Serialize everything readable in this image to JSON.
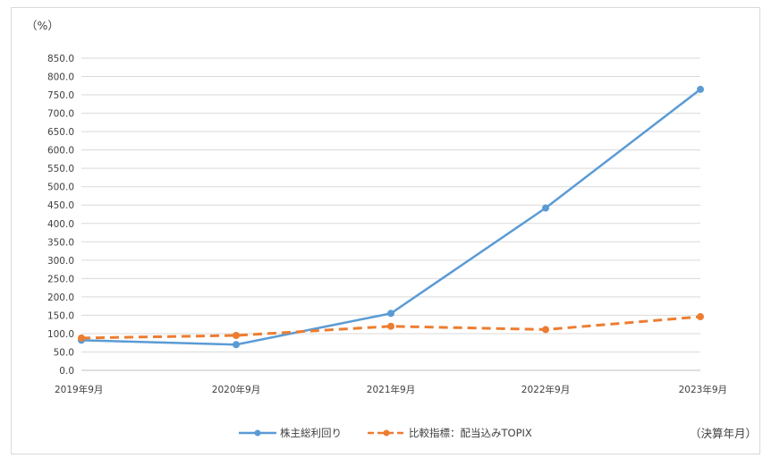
{
  "colors": {
    "series_primary": "#5B9BD5",
    "series_secondary": "#ED7D31",
    "grid": "#d9d9d9"
  },
  "chart_data": {
    "type": "line",
    "title": "",
    "y_unit_label": "（%）",
    "x_caption": "（決算年月）",
    "ylim": [
      0,
      850
    ],
    "ytick_step": 50,
    "yticks": [
      "0.0",
      "50.0",
      "100.0",
      "150.0",
      "200.0",
      "250.0",
      "300.0",
      "350.0",
      "400.0",
      "450.0",
      "500.0",
      "550.0",
      "600.0",
      "650.0",
      "700.0",
      "750.0",
      "800.0",
      "850.0"
    ],
    "categories": [
      "2019年9月",
      "2020年9月",
      "2021年9月",
      "2022年9月",
      "2023年9月"
    ],
    "grid": true,
    "legend": "bottom",
    "series": [
      {
        "name": "株主総利回り",
        "values": [
          82,
          70,
          155,
          442,
          765
        ],
        "style": "solid",
        "color": "#5B9BD5"
      },
      {
        "name": "比較指標：配当込みTOPIX",
        "values": [
          88,
          95,
          120,
          111,
          146
        ],
        "style": "dashed",
        "color": "#ED7D31"
      }
    ]
  }
}
